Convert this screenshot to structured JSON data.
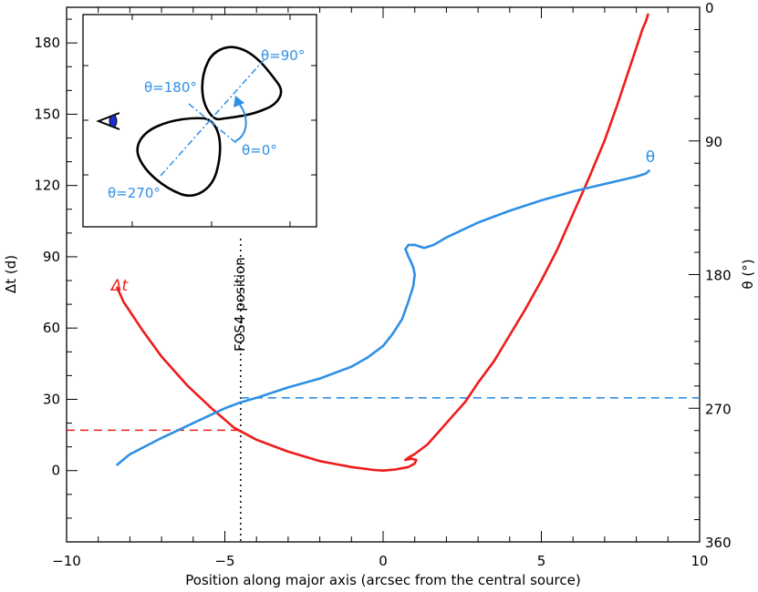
{
  "chart_data": {
    "type": "line",
    "xlabel": "Position along major axis (arcsec from the central source)",
    "ylabel_left": "Δt (d)",
    "ylabel_right": "θ (°)",
    "xlim": [
      -10,
      10
    ],
    "ylim_left": [
      -30,
      195
    ],
    "ylim_right": [
      360,
      0
    ],
    "x_ticks": [
      -10,
      -5,
      0,
      5,
      10
    ],
    "y_left_ticks": [
      0,
      30,
      60,
      90,
      120,
      150,
      180
    ],
    "y_right_ticks": [
      0,
      90,
      180,
      270,
      360
    ],
    "grid": false,
    "series": [
      {
        "name": "Δt",
        "axis": "left",
        "color": "#ee1c1c",
        "x": [
          -8.4,
          -8.2,
          -7.6,
          -7.0,
          -6.2,
          -5.4,
          -4.7,
          -4.0,
          -3.0,
          -2.0,
          -1.0,
          -0.3,
          0.0,
          0.4,
          0.8,
          1.0,
          1.05,
          0.9,
          0.7,
          0.8,
          1.0,
          1.4,
          1.8,
          2.2,
          2.6,
          3.0,
          3.5,
          4.0,
          4.5,
          5.0,
          5.5,
          6.0,
          6.5,
          7.0,
          7.4,
          7.7,
          7.95,
          8.1,
          8.2,
          8.3,
          8.35,
          8.37
        ],
        "y": [
          77,
          71,
          59,
          48,
          36,
          26,
          18,
          13,
          8,
          4,
          1.5,
          0.3,
          0,
          0.5,
          1.5,
          3,
          4.5,
          5,
          4.5,
          5.5,
          7,
          11,
          17,
          23,
          29,
          37,
          46,
          57,
          68,
          80,
          93,
          108,
          123,
          139,
          154,
          166,
          176,
          182,
          186,
          189,
          191,
          192
        ]
      },
      {
        "name": "θ",
        "axis": "right",
        "color": "#2f8fe4",
        "x": [
          -8.4,
          -8.0,
          -7.0,
          -6.0,
          -5.0,
          -4.5,
          -4.0,
          -3.0,
          -2.0,
          -1.0,
          -0.5,
          0.0,
          0.3,
          0.6,
          0.8,
          0.95,
          1.0,
          0.95,
          0.85,
          0.8,
          0.75,
          0.7,
          0.8,
          1.0,
          1.3,
          1.6,
          2.0,
          3.0,
          4.0,
          5.0,
          6.0,
          7.0,
          7.6,
          8.0,
          8.3,
          8.4
        ],
        "y": [
          308,
          301,
          290,
          280,
          270,
          266,
          263,
          256,
          250,
          242,
          236,
          228,
          220,
          210,
          198,
          188,
          180,
          175,
          170,
          168,
          165,
          163,
          160,
          160,
          162,
          160,
          155,
          145,
          137,
          130,
          124,
          119,
          116,
          114,
          112,
          110
        ]
      }
    ],
    "reference_lines": [
      {
        "kind": "vertical",
        "x": -4.5,
        "style": "dotted",
        "color": "#000000",
        "label": "FOS4 position"
      },
      {
        "kind": "horizontal",
        "axis": "left",
        "y": 17,
        "x_from": -10,
        "x_to": -4.5,
        "style": "dashed",
        "color": "#ee1c1c"
      },
      {
        "kind": "horizontal",
        "axis": "right",
        "y": 263,
        "x_from": -4.5,
        "x_to": 10,
        "style": "dashed",
        "color": "#2f8fe4"
      }
    ],
    "series_labels": [
      {
        "text": "Δt",
        "color": "#ee1c1c"
      },
      {
        "text": "θ",
        "color": "#2f8fe4"
      }
    ],
    "inset": {
      "labels": [
        "θ=90°",
        "θ=180°",
        "θ=0°",
        "θ=270°"
      ],
      "label_color": "#2f8fe4",
      "icons": [
        "eye-icon",
        "bipolar-nebula-outline",
        "rotation-arrow-icon"
      ]
    }
  }
}
